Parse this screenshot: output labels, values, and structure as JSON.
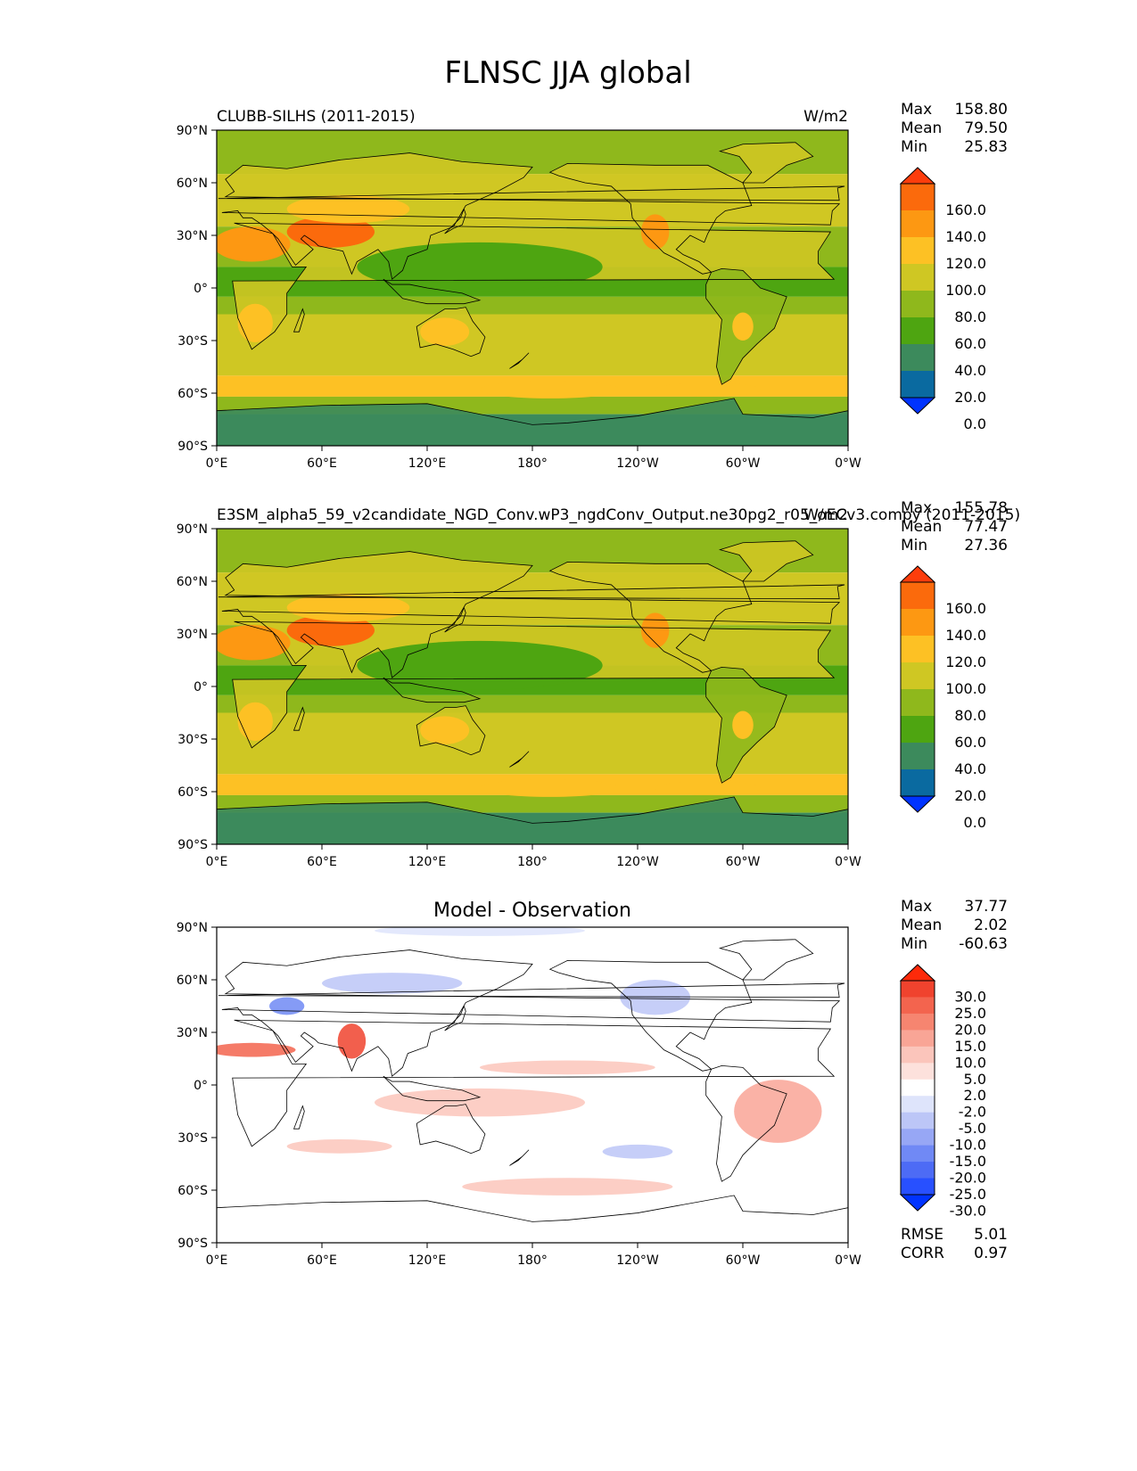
{
  "figure": {
    "title": "FLNSC JJA global"
  },
  "chart_data": [
    {
      "type": "heatmap",
      "name": "test",
      "title_left": "CLUBB-SILHS (2011-2015)",
      "title_center": "",
      "units": "W/m2",
      "stats": [
        {
          "label": "Max",
          "value": "158.80"
        },
        {
          "label": "Mean",
          "value": "79.50"
        },
        {
          "label": "Min",
          "value": "25.83"
        }
      ],
      "colorbar_ticks": [
        "160.0",
        "140.0",
        "120.0",
        "100.0",
        "80.0",
        "60.0",
        "40.0",
        "20.0",
        "0.0"
      ],
      "colorbar_colors": [
        "#0033ff",
        "#0a6aa0",
        "#3c8a5c",
        "#4ea511",
        "#8fb81c",
        "#cfc723",
        "#fdc124",
        "#fd9812",
        "#fb6a0c",
        "#fd3d0c"
      ],
      "xticks": [
        "0°E",
        "60°E",
        "120°E",
        "180°",
        "120°W",
        "60°W",
        "0°W"
      ],
      "yticks": [
        "90°N",
        "60°N",
        "30°N",
        "0°",
        "30°S",
        "60°S",
        "90°S"
      ],
      "xlim": [
        0,
        360
      ],
      "ylim": [
        -90,
        90
      ]
    },
    {
      "type": "heatmap",
      "name": "reference",
      "title_left": "E3SM_alpha5_59_v2candidate_NGD_Conv.wP3_ngdConv_Output.ne30pg2_r05_oECv3.compy (2011-2015)",
      "title_center": "",
      "units": "W/m2",
      "stats": [
        {
          "label": "Max",
          "value": "155.78"
        },
        {
          "label": "Mean",
          "value": "77.47"
        },
        {
          "label": "Min",
          "value": "27.36"
        }
      ],
      "colorbar_ticks": [
        "160.0",
        "140.0",
        "120.0",
        "100.0",
        "80.0",
        "60.0",
        "40.0",
        "20.0",
        "0.0"
      ],
      "colorbar_colors": [
        "#0033ff",
        "#0a6aa0",
        "#3c8a5c",
        "#4ea511",
        "#8fb81c",
        "#cfc723",
        "#fdc124",
        "#fd9812",
        "#fb6a0c",
        "#fd3d0c"
      ],
      "xticks": [
        "0°E",
        "60°E",
        "120°E",
        "180°",
        "120°W",
        "60°W",
        "0°W"
      ],
      "yticks": [
        "90°N",
        "60°N",
        "30°N",
        "0°",
        "30°S",
        "60°S",
        "90°S"
      ],
      "xlim": [
        0,
        360
      ],
      "ylim": [
        -90,
        90
      ]
    },
    {
      "type": "heatmap",
      "name": "difference",
      "title_left": "",
      "title_center": "Model - Observation",
      "units": "",
      "stats": [
        {
          "label": "Max",
          "value": "37.77"
        },
        {
          "label": "Mean",
          "value": "2.02"
        },
        {
          "label": "Min",
          "value": "-60.63"
        }
      ],
      "extra_stats": [
        {
          "label": "RMSE",
          "value": "5.01"
        },
        {
          "label": "CORR",
          "value": "0.97"
        }
      ],
      "colorbar_ticks": [
        "30.0",
        "25.0",
        "20.0",
        "15.0",
        "10.0",
        "5.0",
        "2.0",
        "-2.0",
        "-5.0",
        "-10.0",
        "-15.0",
        "-20.0",
        "-25.0",
        "-30.0"
      ],
      "colorbar_colors": [
        "#0033ff",
        "#2850ff",
        "#4d6bf5",
        "#7089f5",
        "#97a7f5",
        "#bcc6f7",
        "#dee4fb",
        "#ffffff",
        "#fde1dc",
        "#fbc5bb",
        "#f9a596",
        "#f68570",
        "#f3644e",
        "#f0432e",
        "#fd2a0a"
      ],
      "xticks": [
        "0°E",
        "60°E",
        "120°E",
        "180°",
        "120°W",
        "60°W",
        "0°W"
      ],
      "yticks": [
        "90°N",
        "60°N",
        "30°N",
        "0°",
        "30°S",
        "60°S",
        "90°S"
      ],
      "xlim": [
        0,
        360
      ],
      "ylim": [
        -90,
        90
      ]
    }
  ]
}
